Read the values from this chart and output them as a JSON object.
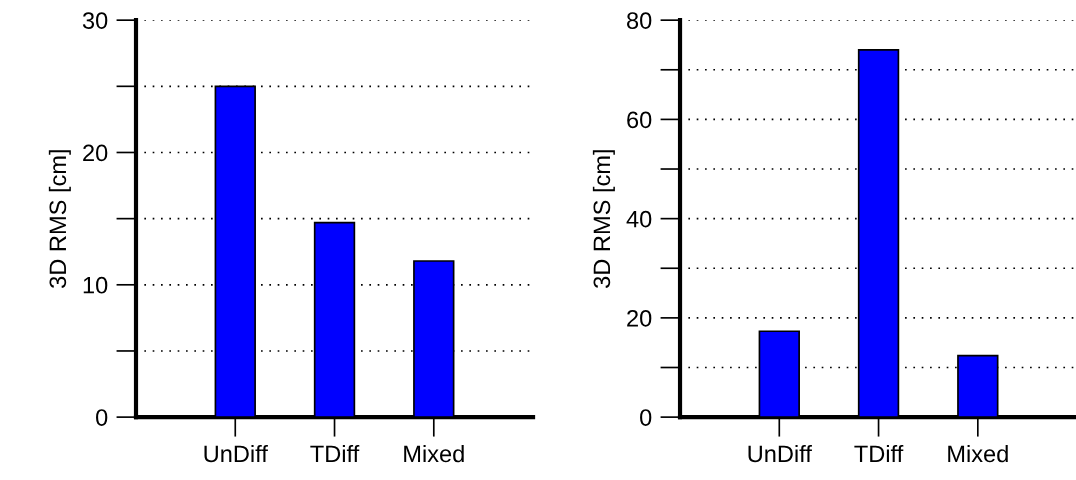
{
  "chart_data": [
    {
      "type": "bar",
      "ylabel": "3D RMS [cm]",
      "categories": [
        "UnDiff",
        "TDiff",
        "Mixed"
      ],
      "values": [
        25,
        14.7,
        11.8
      ],
      "color": "#0000ff",
      "ylim": [
        0,
        30
      ],
      "yticks": [
        0,
        {
          "value": 5,
          "label": null
        },
        10,
        {
          "value": 15,
          "label": null
        },
        20,
        {
          "value": 25,
          "label": null
        },
        30
      ],
      "grid": "y"
    },
    {
      "type": "bar",
      "ylabel": "3D RMS [cm]",
      "categories": [
        "UnDiff",
        "TDiff",
        "Mixed"
      ],
      "values": [
        17.3,
        74,
        12.4
      ],
      "color": "#0000ff",
      "ylim": [
        0,
        80
      ],
      "yticks": [
        0,
        {
          "value": 10,
          "label": null
        },
        20,
        {
          "value": 30,
          "label": null
        },
        40,
        {
          "value": 50,
          "label": null
        },
        60,
        {
          "value": 70,
          "label": null
        },
        80
      ],
      "grid": "y"
    }
  ]
}
